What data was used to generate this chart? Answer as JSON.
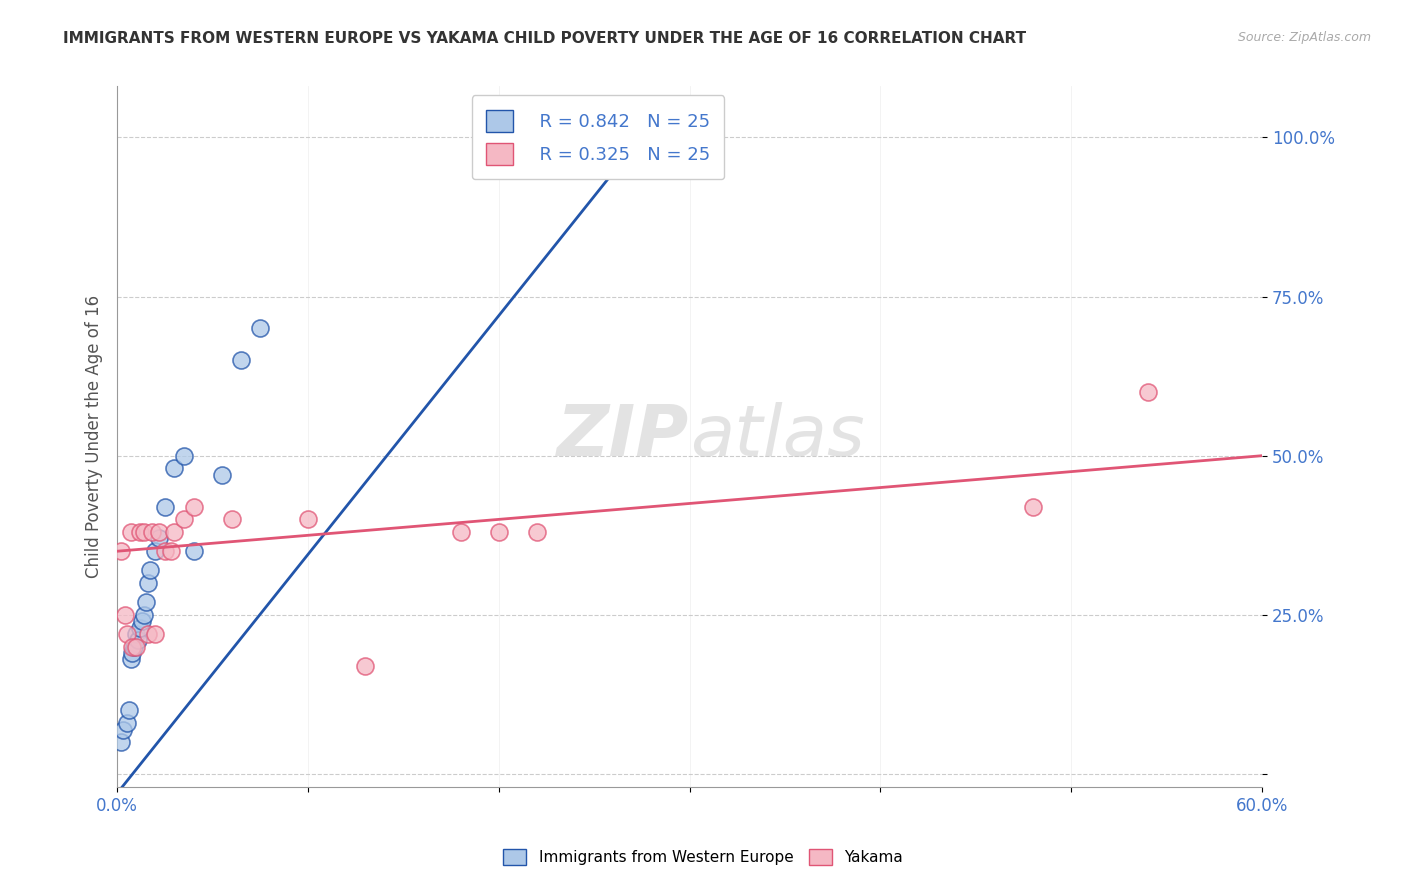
{
  "title": "IMMIGRANTS FROM WESTERN EUROPE VS YAKAMA CHILD POVERTY UNDER THE AGE OF 16 CORRELATION CHART",
  "source": "Source: ZipAtlas.com",
  "ylabel": "Child Poverty Under the Age of 16",
  "ytick_labels": [
    "",
    "25.0%",
    "50.0%",
    "75.0%",
    "100.0%"
  ],
  "ytick_values": [
    0.0,
    0.25,
    0.5,
    0.75,
    1.0
  ],
  "xlim": [
    0.0,
    0.6
  ],
  "ylim": [
    -0.02,
    1.08
  ],
  "legend_blue_r": "R = 0.842",
  "legend_blue_n": "N = 25",
  "legend_pink_r": "R = 0.325",
  "legend_pink_n": "N = 25",
  "legend_label_blue": "Immigrants from Western Europe",
  "legend_label_pink": "Yakama",
  "watermark_zip": "ZIP",
  "watermark_atlas": "atlas",
  "blue_color": "#adc8e8",
  "pink_color": "#f5b8c4",
  "line_blue": "#2255aa",
  "line_pink": "#e05575",
  "tick_color": "#4477cc",
  "blue_scatter_x": [
    0.002,
    0.003,
    0.005,
    0.006,
    0.007,
    0.008,
    0.009,
    0.01,
    0.011,
    0.012,
    0.013,
    0.014,
    0.015,
    0.016,
    0.017,
    0.02,
    0.022,
    0.025,
    0.03,
    0.035,
    0.04,
    0.055,
    0.065,
    0.075,
    0.26
  ],
  "blue_scatter_y": [
    0.05,
    0.07,
    0.08,
    0.1,
    0.18,
    0.19,
    0.2,
    0.22,
    0.21,
    0.23,
    0.24,
    0.25,
    0.27,
    0.3,
    0.32,
    0.35,
    0.37,
    0.42,
    0.48,
    0.5,
    0.35,
    0.47,
    0.65,
    0.7,
    0.97
  ],
  "pink_scatter_x": [
    0.002,
    0.004,
    0.005,
    0.007,
    0.008,
    0.01,
    0.012,
    0.014,
    0.016,
    0.018,
    0.02,
    0.022,
    0.025,
    0.028,
    0.03,
    0.035,
    0.04,
    0.06,
    0.1,
    0.13,
    0.18,
    0.2,
    0.22,
    0.48,
    0.54
  ],
  "pink_scatter_y": [
    0.35,
    0.25,
    0.22,
    0.38,
    0.2,
    0.2,
    0.38,
    0.38,
    0.22,
    0.38,
    0.22,
    0.38,
    0.35,
    0.35,
    0.38,
    0.4,
    0.42,
    0.4,
    0.4,
    0.17,
    0.38,
    0.38,
    0.38,
    0.42,
    0.6
  ],
  "blue_line_x": [
    0.0,
    0.28
  ],
  "blue_line_y": [
    -0.03,
    1.02
  ],
  "pink_line_x": [
    0.0,
    0.6
  ],
  "pink_line_y": [
    0.35,
    0.5
  ]
}
